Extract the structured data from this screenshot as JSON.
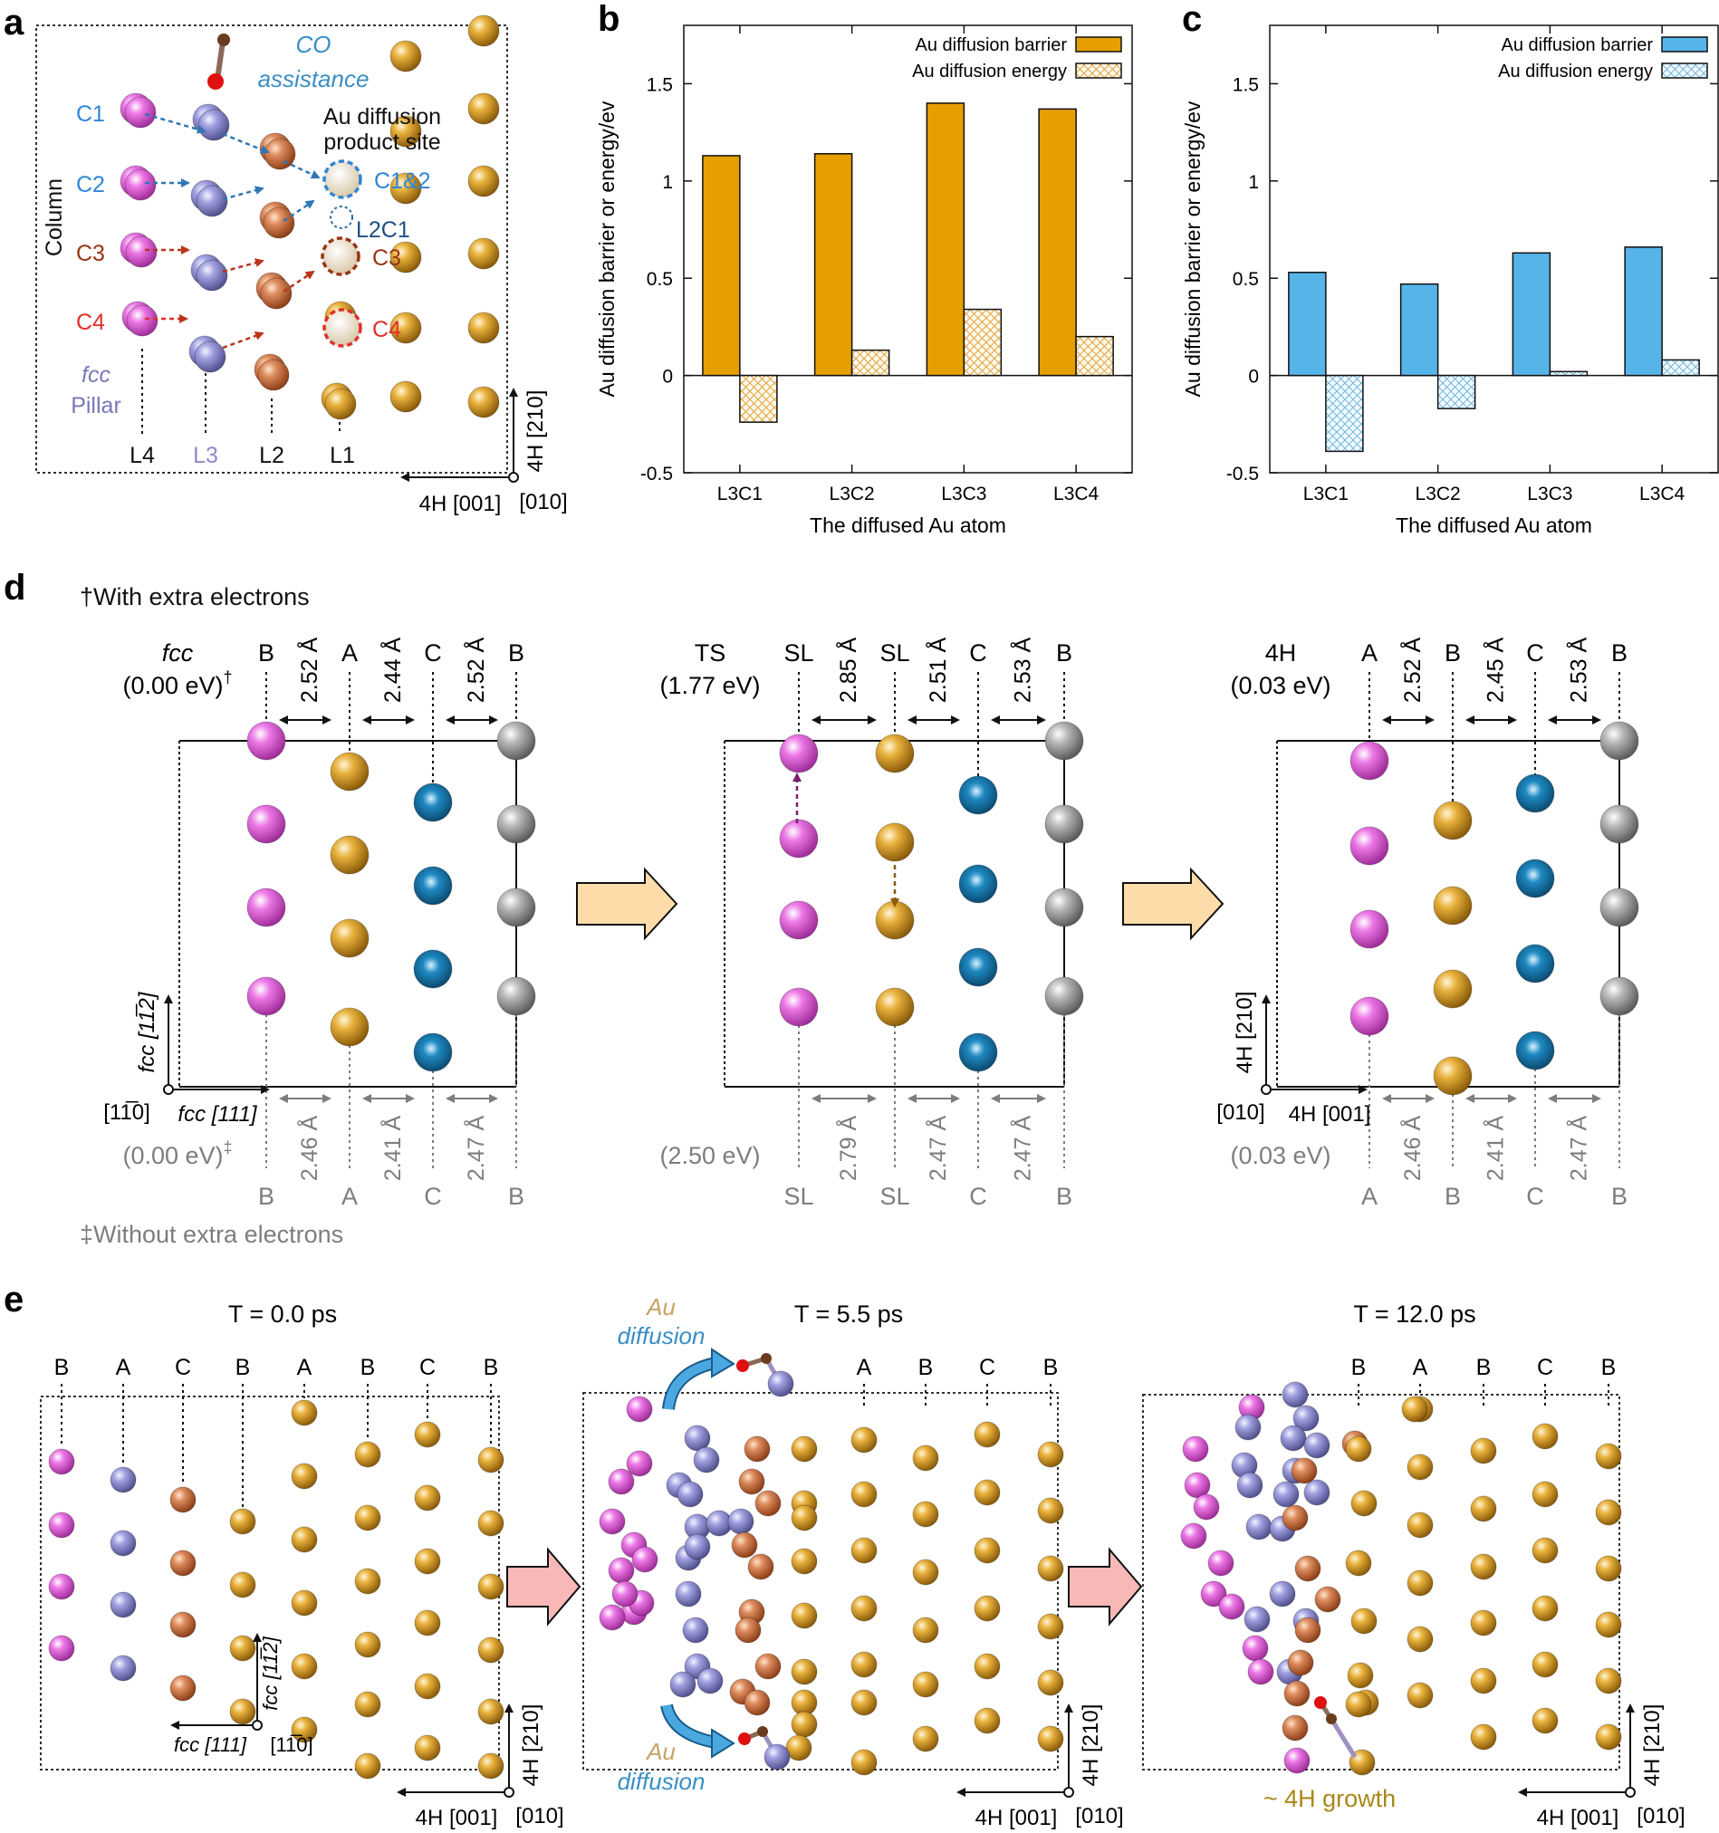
{
  "panels": {
    "a": "a",
    "b": "b",
    "c": "c",
    "d": "d",
    "e": "e"
  },
  "colors": {
    "magenta": "#e05bd9",
    "lavender": "#8f8fd4",
    "copper": "#d27a4c",
    "gold": "#d9991c",
    "teal": "#167ab0",
    "grey": "#a3a3a3",
    "barOrange": "#e69f00",
    "barBlue": "#56b4e9",
    "co_blue": "#3a8ec4",
    "arrowBeige": "#fddcaa",
    "arrowPink": "#f8b8b8",
    "gray_text": "#7d7d7d"
  },
  "panel_a": {
    "co_line1": "CO",
    "co_line2": "assistance",
    "product_line1": "Au diffusion",
    "product_line2": "product site",
    "c1": "C1",
    "c2": "C2",
    "c3": "C3",
    "c4": "C4",
    "site_c12": "C1&2",
    "site_l2c1": "L2C1",
    "site_c3": "C3",
    "site_c4": "C4",
    "column": "Column",
    "fcc": "fcc",
    "pillar": "Pillar",
    "l4": "L4",
    "l3": "L3",
    "l2": "L2",
    "l1": "L1",
    "axis_v": "4H [210]",
    "axis_h": "4H [001]",
    "axis_o": "[010]"
  },
  "chart_data": [
    {
      "id": "b",
      "type": "bar",
      "categories": [
        "L3C1",
        "L3C2",
        "L3C3",
        "L3C4"
      ],
      "series": [
        {
          "name": "Au diffusion barrier",
          "values": [
            1.13,
            1.14,
            1.4,
            1.37
          ]
        },
        {
          "name": "Au diffusion energy",
          "values": [
            -0.24,
            0.13,
            0.34,
            0.2
          ]
        }
      ],
      "xlabel": "The diffused Au atom",
      "ylabel": "Au diffusion barrier or energy/ev",
      "ylim": [
        -0.5,
        1.8
      ],
      "yticks": [
        -0.5,
        0,
        0.5,
        1,
        1.5
      ],
      "ytick_labels": [
        "-0.5",
        "0",
        "0.5",
        "1",
        "1.5"
      ],
      "legend_position": "top-right"
    },
    {
      "id": "c",
      "type": "bar",
      "categories": [
        "L3C1",
        "L3C2",
        "L3C3",
        "L3C4"
      ],
      "series": [
        {
          "name": "Au diffusion barrier",
          "values": [
            0.53,
            0.47,
            0.63,
            0.66
          ]
        },
        {
          "name": "Au diffusion energy",
          "values": [
            -0.39,
            -0.17,
            0.02,
            0.08
          ]
        }
      ],
      "xlabel": "The diffused Au atom",
      "ylabel": "Au diffusion barrier or energy/ev",
      "ylim": [
        -0.5,
        1.8
      ],
      "yticks": [
        -0.5,
        0,
        0.5,
        1,
        1.5
      ],
      "ytick_labels": [
        "-0.5",
        "0",
        "0.5",
        "1",
        "1.5"
      ],
      "legend_position": "top-right"
    }
  ],
  "panel_d": {
    "note_with": "†With extra electrons",
    "note_without": "‡Without extra electrons",
    "fcc": {
      "name": "fcc",
      "energy": "(0.00 eV)",
      "energy_mark": "†",
      "layers": [
        "B",
        "A",
        "C",
        "B"
      ],
      "dists": [
        "2.52 Å",
        "2.44 Å",
        "2.52 Å"
      ],
      "energy2": "(0.00 eV)",
      "energy2_mark": "‡",
      "dists2": [
        "2.46 Å",
        "2.41 Å",
        "2.47 Å"
      ],
      "axis_v": "fcc [11̅2]",
      "axis_h": "fcc [111]",
      "axis_o": "[11̅0]"
    },
    "ts": {
      "name": "TS",
      "energy": "(1.77 eV)",
      "layers": [
        "SL",
        "SL",
        "C",
        "B"
      ],
      "dists": [
        "2.85 Å",
        "2.51 Å",
        "2.53 Å"
      ],
      "energy2": "(2.50 eV)",
      "dists2": [
        "2.79 Å",
        "2.47 Å",
        "2.47 Å"
      ]
    },
    "h4": {
      "name": "4H",
      "energy": "(0.03 eV)",
      "layers": [
        "A",
        "B",
        "C",
        "B"
      ],
      "dists": [
        "2.52 Å",
        "2.45 Å",
        "2.53 Å"
      ],
      "energy2": "(0.03 eV)",
      "dists2": [
        "2.46 Å",
        "2.41 Å",
        "2.47 Å"
      ],
      "axis_v": "4H [210]",
      "axis_h": "4H [001]",
      "axis_o": "[010]"
    }
  },
  "panel_e": {
    "t1": "T = 0.0 ps",
    "t2": "T = 5.5 ps",
    "t3": "T = 12.0 ps",
    "layers1": [
      "B",
      "A",
      "C",
      "B",
      "A",
      "B",
      "C",
      "B"
    ],
    "layers2": [
      "A",
      "B",
      "C",
      "B"
    ],
    "layers3": [
      "B",
      "A",
      "B",
      "C",
      "B"
    ],
    "au": "Au",
    "diffusion": "diffusion",
    "growth": "~ 4H growth",
    "fcc_axis_v": "fcc [11̅2]",
    "fcc_axis_h": "fcc [111]",
    "fcc_axis_o": "[11̅0]",
    "axis_v": "4H [210]",
    "axis_h": "4H [001]",
    "axis_o": "[010]"
  }
}
